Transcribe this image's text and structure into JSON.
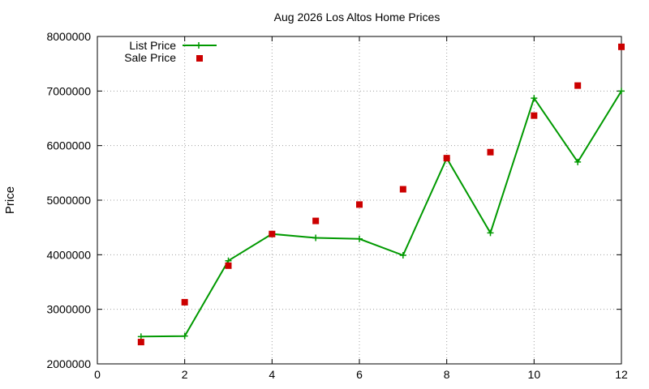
{
  "chart_data": {
    "type": "line",
    "title": "Aug 2026 Los Altos Home Prices",
    "xlabel": "",
    "ylabel": "Price",
    "xlim": [
      0,
      12
    ],
    "ylim": [
      2000000,
      8000000
    ],
    "x_ticks": [
      "0",
      "2",
      "4",
      "6",
      "8",
      "10",
      "12"
    ],
    "y_ticks": [
      "2000000",
      "3000000",
      "4000000",
      "5000000",
      "6000000",
      "7000000",
      "8000000"
    ],
    "grid": true,
    "legend_position": "top-left",
    "series": [
      {
        "name": "List Price",
        "style": "line with plus markers",
        "color": "#009900",
        "x": [
          1,
          2,
          3,
          4,
          5,
          6,
          7,
          8,
          9,
          10,
          11,
          12
        ],
        "y": [
          2500000,
          2510000,
          3890000,
          4380000,
          4310000,
          4290000,
          3990000,
          5770000,
          4400000,
          6870000,
          5700000,
          7000000
        ]
      },
      {
        "name": "Sale Price",
        "style": "square markers",
        "color": "#cc0000",
        "x": [
          1,
          2,
          3,
          4,
          5,
          6,
          7,
          8,
          9,
          10,
          11,
          12
        ],
        "y": [
          2400000,
          3130000,
          3800000,
          4380000,
          4620000,
          4920000,
          5200000,
          5770000,
          5880000,
          6550000,
          7100000,
          7810000
        ]
      }
    ]
  }
}
